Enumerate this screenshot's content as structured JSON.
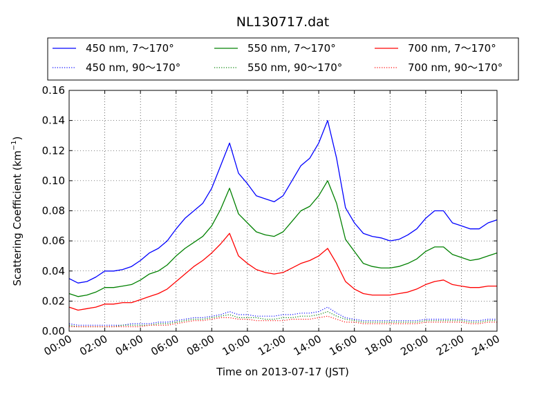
{
  "chart_data": {
    "type": "line",
    "title": "NL130717.dat",
    "xlabel": "Time on 2013-07-17 (JST)",
    "ylabel": "Scattering Coefficient (km",
    "ylabel_sup": "−1",
    "ylabel_close": ")",
    "xlim": [
      "00:00",
      "24:00"
    ],
    "ylim": [
      0.0,
      0.16
    ],
    "xticks": [
      "00:00",
      "02:00",
      "04:00",
      "06:00",
      "08:00",
      "10:00",
      "12:00",
      "14:00",
      "16:00",
      "18:00",
      "20:00",
      "22:00",
      "24:00"
    ],
    "yticks": [
      "0.00",
      "0.02",
      "0.04",
      "0.06",
      "0.08",
      "0.10",
      "0.12",
      "0.14",
      "0.16"
    ],
    "grid": true,
    "legend_position": "top, above plot",
    "x": [
      "00:00",
      "00:30",
      "01:00",
      "01:30",
      "02:00",
      "02:30",
      "03:00",
      "03:30",
      "04:00",
      "04:30",
      "05:00",
      "05:30",
      "06:00",
      "06:30",
      "07:00",
      "07:30",
      "08:00",
      "08:30",
      "09:00",
      "09:30",
      "10:00",
      "10:30",
      "11:00",
      "11:30",
      "12:00",
      "12:30",
      "13:00",
      "13:30",
      "14:00",
      "14:30",
      "15:00",
      "15:30",
      "16:00",
      "16:30",
      "17:00",
      "17:30",
      "18:00",
      "18:30",
      "19:00",
      "19:30",
      "20:00",
      "20:30",
      "21:00",
      "21:30",
      "22:00",
      "22:30",
      "23:00",
      "23:30",
      "24:00"
    ],
    "series": [
      {
        "name": "450 nm, 7～170°",
        "color": "#0000ff",
        "style": "solid",
        "values": [
          0.035,
          0.032,
          0.033,
          0.036,
          0.04,
          0.04,
          0.041,
          0.043,
          0.047,
          0.052,
          0.055,
          0.06,
          0.068,
          0.075,
          0.08,
          0.085,
          0.095,
          0.11,
          0.125,
          0.105,
          0.098,
          0.09,
          0.088,
          0.086,
          0.09,
          0.1,
          0.11,
          0.115,
          0.125,
          0.14,
          0.115,
          0.082,
          0.072,
          0.065,
          0.063,
          0.062,
          0.06,
          0.061,
          0.064,
          0.068,
          0.075,
          0.08,
          0.08,
          0.072,
          0.07,
          0.068,
          0.068,
          0.072,
          0.074
        ]
      },
      {
        "name": "550 nm, 7～170°",
        "color": "#008000",
        "style": "solid",
        "values": [
          0.025,
          0.023,
          0.024,
          0.026,
          0.029,
          0.029,
          0.03,
          0.031,
          0.034,
          0.038,
          0.04,
          0.044,
          0.05,
          0.055,
          0.059,
          0.063,
          0.07,
          0.081,
          0.095,
          0.078,
          0.072,
          0.066,
          0.064,
          0.063,
          0.066,
          0.073,
          0.08,
          0.083,
          0.09,
          0.1,
          0.085,
          0.061,
          0.053,
          0.045,
          0.043,
          0.042,
          0.042,
          0.043,
          0.045,
          0.048,
          0.053,
          0.056,
          0.056,
          0.051,
          0.049,
          0.047,
          0.048,
          0.05,
          0.052
        ]
      },
      {
        "name": "700 nm, 7～170°",
        "color": "#ff0000",
        "style": "solid",
        "values": [
          0.016,
          0.014,
          0.015,
          0.016,
          0.018,
          0.018,
          0.019,
          0.019,
          0.021,
          0.023,
          0.025,
          0.028,
          0.033,
          0.038,
          0.043,
          0.047,
          0.052,
          0.058,
          0.065,
          0.05,
          0.045,
          0.041,
          0.039,
          0.038,
          0.039,
          0.042,
          0.045,
          0.047,
          0.05,
          0.055,
          0.045,
          0.033,
          0.028,
          0.025,
          0.024,
          0.024,
          0.024,
          0.025,
          0.026,
          0.028,
          0.031,
          0.033,
          0.034,
          0.031,
          0.03,
          0.029,
          0.029,
          0.03,
          0.03
        ]
      },
      {
        "name": "450 nm, 90～170°",
        "color": "#0000ff",
        "style": "dotted",
        "values": [
          0.005,
          0.004,
          0.004,
          0.004,
          0.004,
          0.004,
          0.004,
          0.005,
          0.005,
          0.005,
          0.006,
          0.006,
          0.007,
          0.008,
          0.009,
          0.009,
          0.01,
          0.011,
          0.013,
          0.011,
          0.011,
          0.01,
          0.01,
          0.01,
          0.011,
          0.011,
          0.012,
          0.012,
          0.013,
          0.016,
          0.012,
          0.009,
          0.008,
          0.007,
          0.007,
          0.007,
          0.007,
          0.007,
          0.007,
          0.007,
          0.008,
          0.008,
          0.008,
          0.008,
          0.008,
          0.007,
          0.007,
          0.008,
          0.008
        ]
      },
      {
        "name": "550 nm, 90～170°",
        "color": "#008000",
        "style": "dotted",
        "values": [
          0.004,
          0.003,
          0.003,
          0.003,
          0.003,
          0.003,
          0.004,
          0.004,
          0.004,
          0.004,
          0.005,
          0.005,
          0.006,
          0.007,
          0.008,
          0.008,
          0.009,
          0.01,
          0.011,
          0.009,
          0.009,
          0.009,
          0.008,
          0.008,
          0.009,
          0.009,
          0.01,
          0.01,
          0.011,
          0.013,
          0.01,
          0.008,
          0.007,
          0.006,
          0.006,
          0.006,
          0.006,
          0.006,
          0.006,
          0.006,
          0.007,
          0.007,
          0.007,
          0.007,
          0.007,
          0.006,
          0.006,
          0.007,
          0.007
        ]
      },
      {
        "name": "700 nm, 90～170°",
        "color": "#ff0000",
        "style": "dotted",
        "values": [
          0.003,
          0.003,
          0.003,
          0.003,
          0.003,
          0.003,
          0.003,
          0.003,
          0.003,
          0.004,
          0.004,
          0.004,
          0.005,
          0.006,
          0.007,
          0.007,
          0.008,
          0.009,
          0.009,
          0.008,
          0.008,
          0.007,
          0.007,
          0.007,
          0.007,
          0.008,
          0.008,
          0.008,
          0.009,
          0.01,
          0.008,
          0.006,
          0.006,
          0.005,
          0.005,
          0.005,
          0.005,
          0.005,
          0.005,
          0.005,
          0.006,
          0.006,
          0.006,
          0.006,
          0.006,
          0.005,
          0.005,
          0.006,
          0.006
        ]
      }
    ]
  }
}
